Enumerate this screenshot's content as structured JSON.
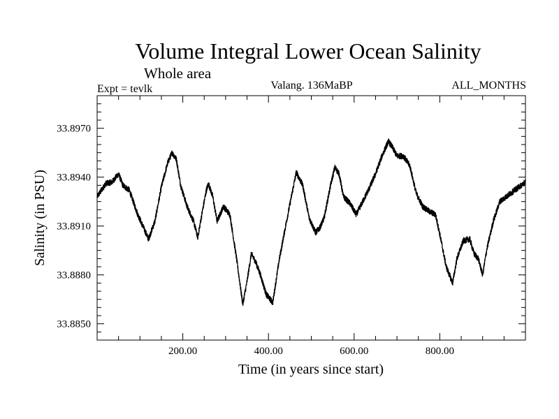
{
  "chart_data": {
    "type": "line",
    "title": "Volume Integral Lower Ocean Salinity",
    "subtitle": "Whole area",
    "experiment_label": "Expt = tevlk",
    "period_label": "Valang. 136MaBP",
    "months_label": "ALL_MONTHS",
    "xlabel": "Time (in years since start)",
    "ylabel": "Salinity (in PSU)",
    "xlim": [
      0,
      1000
    ],
    "ylim": [
      33.884,
      33.899
    ],
    "x_ticks": [
      200,
      400,
      600,
      800
    ],
    "x_tick_labels": [
      "200.00",
      "400.00",
      "600.00",
      "800.00"
    ],
    "y_ticks": [
      33.885,
      33.888,
      33.891,
      33.894,
      33.897
    ],
    "y_tick_labels": [
      "33.8850",
      "33.8880",
      "33.8910",
      "33.8940",
      "33.8970"
    ],
    "grid": false,
    "series": [
      {
        "name": "Salinity",
        "color": "#000000",
        "noise_amplitude": 0.00018,
        "x": [
          0,
          20,
          35,
          50,
          60,
          75,
          95,
          110,
          120,
          135,
          150,
          165,
          175,
          185,
          195,
          210,
          225,
          235,
          245,
          255,
          260,
          270,
          280,
          295,
          310,
          325,
          340,
          350,
          360,
          370,
          380,
          395,
          410,
          425,
          440,
          455,
          465,
          480,
          495,
          510,
          520,
          530,
          545,
          555,
          565,
          575,
          590,
          605,
          620,
          635,
          650,
          665,
          680,
          690,
          700,
          715,
          730,
          745,
          760,
          775,
          790,
          800,
          815,
          830,
          840,
          855,
          870,
          880,
          890,
          900,
          910,
          925,
          940,
          955,
          970,
          985,
          1000
        ],
        "y": [
          33.8928,
          33.8936,
          33.8937,
          33.8942,
          33.8935,
          33.8932,
          33.8917,
          33.8908,
          33.8902,
          33.8913,
          33.8934,
          33.8949,
          33.8955,
          33.8951,
          33.8935,
          33.8922,
          33.8913,
          33.8903,
          33.8918,
          33.8932,
          33.8936,
          33.8928,
          33.8913,
          33.8922,
          33.8917,
          33.8891,
          33.8862,
          33.8876,
          33.8893,
          33.8888,
          33.8881,
          33.8868,
          33.8863,
          33.8889,
          33.891,
          33.893,
          33.8943,
          33.8935,
          33.8915,
          33.8906,
          33.8909,
          33.8915,
          33.8935,
          33.8946,
          33.8942,
          33.8928,
          33.8924,
          33.8917,
          33.8925,
          33.8933,
          33.8942,
          33.8953,
          33.8962,
          33.8958,
          33.8953,
          33.8953,
          33.8947,
          33.893,
          33.8922,
          33.8919,
          33.8917,
          33.8905,
          33.8885,
          33.8875,
          33.889,
          33.8901,
          33.8902,
          33.8893,
          33.889,
          33.888,
          33.8896,
          33.8913,
          33.8925,
          33.8928,
          33.8931,
          33.8934,
          33.8937
        ]
      }
    ]
  }
}
